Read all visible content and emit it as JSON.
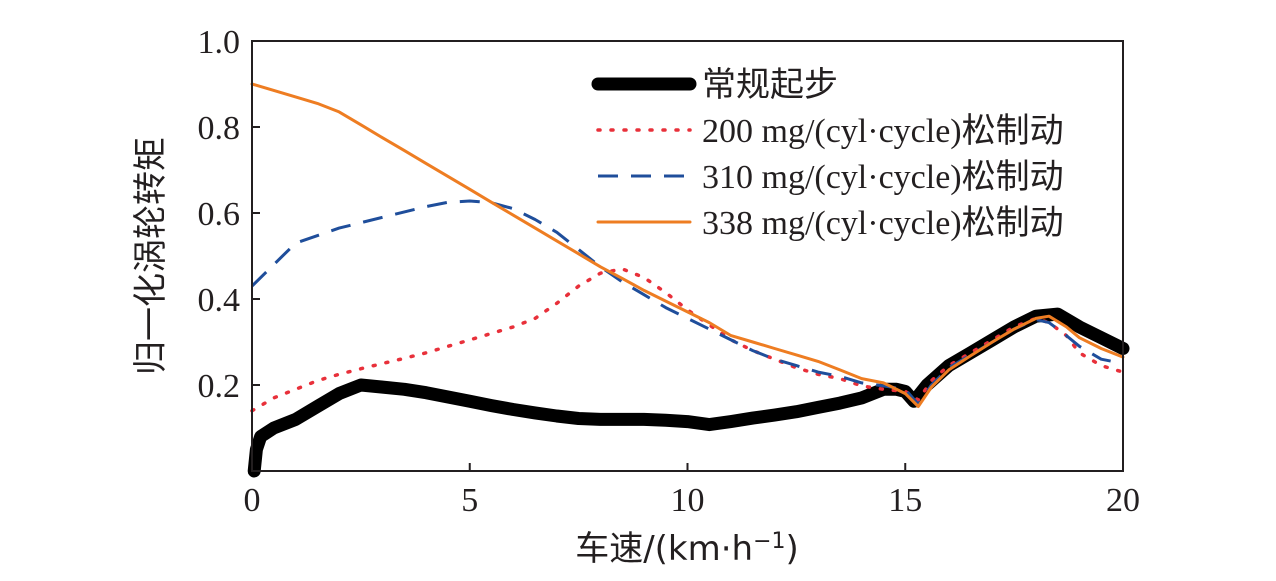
{
  "chart_data": {
    "type": "line",
    "xlabel": "车速/(km·h",
    "xlabel_sup": "−1",
    "xlabel_close": ")",
    "ylabel": "归一化涡轮转矩",
    "xlim": [
      0,
      20
    ],
    "ylim": [
      0,
      1.0
    ],
    "x_ticks": [
      0,
      5,
      10,
      15,
      20
    ],
    "x_tick_labels": [
      "0",
      "5",
      "10",
      "15",
      "20"
    ],
    "y_ticks": [
      0.2,
      0.4,
      0.6,
      0.8,
      1.0
    ],
    "y_tick_labels": [
      "0.2",
      "0.4",
      "0.6",
      "0.8",
      "1.0"
    ],
    "grid": false,
    "legend_position": "top-right",
    "series": [
      {
        "name": "常规起步",
        "color": "#000000",
        "style": "solid-thick",
        "points": [
          [
            0.05,
            0.0
          ],
          [
            0.1,
            0.05
          ],
          [
            0.2,
            0.08
          ],
          [
            0.5,
            0.1
          ],
          [
            1,
            0.12
          ],
          [
            1.5,
            0.15
          ],
          [
            2,
            0.18
          ],
          [
            2.5,
            0.2
          ],
          [
            3,
            0.195
          ],
          [
            3.5,
            0.19
          ],
          [
            4,
            0.182
          ],
          [
            4.5,
            0.172
          ],
          [
            5,
            0.162
          ],
          [
            5.5,
            0.152
          ],
          [
            6,
            0.143
          ],
          [
            6.5,
            0.135
          ],
          [
            7,
            0.128
          ],
          [
            7.5,
            0.122
          ],
          [
            8,
            0.12
          ],
          [
            8.5,
            0.12
          ],
          [
            9,
            0.12
          ],
          [
            9.5,
            0.118
          ],
          [
            10,
            0.115
          ],
          [
            10.5,
            0.108
          ],
          [
            11,
            0.115
          ],
          [
            11.5,
            0.123
          ],
          [
            12,
            0.13
          ],
          [
            12.5,
            0.138
          ],
          [
            13,
            0.148
          ],
          [
            13.5,
            0.158
          ],
          [
            14,
            0.17
          ],
          [
            14.5,
            0.19
          ],
          [
            14.8,
            0.19
          ],
          [
            15,
            0.185
          ],
          [
            15.2,
            0.162
          ],
          [
            15.5,
            0.2
          ],
          [
            16,
            0.245
          ],
          [
            16.5,
            0.275
          ],
          [
            17,
            0.305
          ],
          [
            17.5,
            0.335
          ],
          [
            18,
            0.36
          ],
          [
            18.5,
            0.365
          ],
          [
            19,
            0.335
          ],
          [
            19.5,
            0.31
          ],
          [
            20,
            0.285
          ]
        ]
      },
      {
        "name": "200 mg/(cyl·cycle)松制动",
        "color": "#e8303a",
        "style": "dotted",
        "points": [
          [
            0,
            0.14
          ],
          [
            0.5,
            0.17
          ],
          [
            1,
            0.19
          ],
          [
            1.5,
            0.21
          ],
          [
            2,
            0.225
          ],
          [
            2.5,
            0.238
          ],
          [
            3,
            0.25
          ],
          [
            3.5,
            0.262
          ],
          [
            4,
            0.275
          ],
          [
            4.5,
            0.29
          ],
          [
            5,
            0.305
          ],
          [
            5.5,
            0.32
          ],
          [
            6,
            0.335
          ],
          [
            6.5,
            0.355
          ],
          [
            7,
            0.39
          ],
          [
            7.5,
            0.43
          ],
          [
            8,
            0.46
          ],
          [
            8.5,
            0.47
          ],
          [
            9,
            0.45
          ],
          [
            9.5,
            0.415
          ],
          [
            10,
            0.375
          ],
          [
            10.5,
            0.34
          ],
          [
            11,
            0.305
          ],
          [
            11.5,
            0.28
          ],
          [
            12,
            0.26
          ],
          [
            12.5,
            0.24
          ],
          [
            13,
            0.225
          ],
          [
            13.5,
            0.215
          ],
          [
            14,
            0.198
          ],
          [
            14.5,
            0.19
          ],
          [
            15,
            0.185
          ],
          [
            15.3,
            0.165
          ],
          [
            15.6,
            0.21
          ],
          [
            16,
            0.245
          ],
          [
            16.5,
            0.275
          ],
          [
            17,
            0.305
          ],
          [
            17.5,
            0.335
          ],
          [
            18,
            0.355
          ],
          [
            18.3,
            0.345
          ],
          [
            18.7,
            0.315
          ],
          [
            19,
            0.275
          ],
          [
            19.5,
            0.245
          ],
          [
            20,
            0.23
          ]
        ]
      },
      {
        "name": "310 mg/(cyl·cycle)松制动",
        "color": "#1f4e9b",
        "style": "dashed",
        "points": [
          [
            0,
            0.43
          ],
          [
            0.5,
            0.48
          ],
          [
            1,
            0.53
          ],
          [
            2,
            0.565
          ],
          [
            3,
            0.59
          ],
          [
            4,
            0.615
          ],
          [
            4.5,
            0.625
          ],
          [
            5,
            0.628
          ],
          [
            5.5,
            0.624
          ],
          [
            6,
            0.61
          ],
          [
            6.5,
            0.585
          ],
          [
            7,
            0.555
          ],
          [
            7.5,
            0.515
          ],
          [
            8,
            0.475
          ],
          [
            8.5,
            0.44
          ],
          [
            9,
            0.41
          ],
          [
            9.5,
            0.38
          ],
          [
            10,
            0.355
          ],
          [
            10.5,
            0.33
          ],
          [
            11,
            0.305
          ],
          [
            11.5,
            0.28
          ],
          [
            12,
            0.26
          ],
          [
            12.5,
            0.245
          ],
          [
            13,
            0.23
          ],
          [
            13.5,
            0.22
          ],
          [
            14,
            0.205
          ],
          [
            14.5,
            0.198
          ],
          [
            15,
            0.19
          ],
          [
            15.3,
            0.155
          ],
          [
            15.6,
            0.2
          ],
          [
            16,
            0.24
          ],
          [
            16.5,
            0.27
          ],
          [
            17,
            0.3
          ],
          [
            17.5,
            0.33
          ],
          [
            18,
            0.352
          ],
          [
            18.3,
            0.345
          ],
          [
            18.7,
            0.315
          ],
          [
            19,
            0.29
          ],
          [
            19.5,
            0.26
          ],
          [
            20,
            0.25
          ]
        ]
      },
      {
        "name": "338 mg/(cyl·cycle)松制动",
        "color": "#ee7d22",
        "style": "solid",
        "points": [
          [
            0,
            0.9
          ],
          [
            0.5,
            0.885
          ],
          [
            1,
            0.87
          ],
          [
            1.5,
            0.855
          ],
          [
            2,
            0.835
          ],
          [
            2.5,
            0.805
          ],
          [
            3,
            0.775
          ],
          [
            3.5,
            0.745
          ],
          [
            4,
            0.715
          ],
          [
            4.5,
            0.685
          ],
          [
            5,
            0.655
          ],
          [
            5.5,
            0.625
          ],
          [
            6,
            0.595
          ],
          [
            6.5,
            0.565
          ],
          [
            7,
            0.535
          ],
          [
            7.5,
            0.505
          ],
          [
            8,
            0.475
          ],
          [
            8.5,
            0.448
          ],
          [
            9,
            0.42
          ],
          [
            9.5,
            0.395
          ],
          [
            10,
            0.37
          ],
          [
            10.5,
            0.345
          ],
          [
            11,
            0.315
          ],
          [
            11.5,
            0.3
          ],
          [
            12,
            0.285
          ],
          [
            12.5,
            0.27
          ],
          [
            13,
            0.255
          ],
          [
            13.5,
            0.235
          ],
          [
            14,
            0.215
          ],
          [
            14.5,
            0.205
          ],
          [
            15,
            0.18
          ],
          [
            15.3,
            0.15
          ],
          [
            15.6,
            0.195
          ],
          [
            16,
            0.235
          ],
          [
            16.5,
            0.268
          ],
          [
            17,
            0.3
          ],
          [
            17.5,
            0.33
          ],
          [
            18,
            0.355
          ],
          [
            18.3,
            0.36
          ],
          [
            18.7,
            0.335
          ],
          [
            19,
            0.31
          ],
          [
            19.5,
            0.285
          ],
          [
            20,
            0.265
          ]
        ]
      }
    ]
  }
}
